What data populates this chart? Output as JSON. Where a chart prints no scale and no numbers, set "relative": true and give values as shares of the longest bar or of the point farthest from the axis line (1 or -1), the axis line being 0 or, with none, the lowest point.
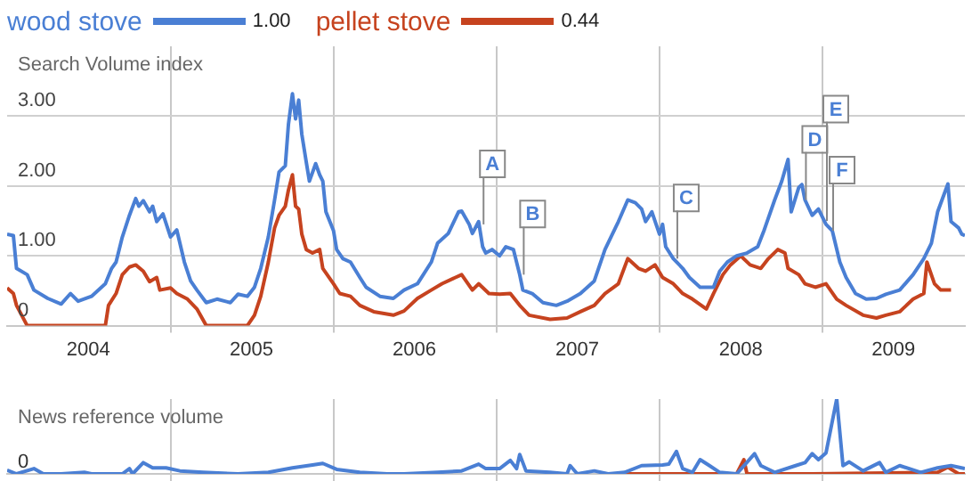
{
  "chart_data": [
    {
      "type": "line",
      "ylabel": "Search Volume index",
      "legend": "top left",
      "grid": true,
      "xlim": [
        "2004-01-01",
        "2009-11-15"
      ],
      "xticks": [
        {
          "value": "2004-07-01",
          "label": "2004"
        },
        {
          "value": "2005-01-01",
          "label": null
        },
        {
          "value": "2005-07-01",
          "label": "2005"
        },
        {
          "value": "2006-01-01",
          "label": null
        },
        {
          "value": "2006-07-01",
          "label": "2006"
        },
        {
          "value": "2007-01-01",
          "label": null
        },
        {
          "value": "2007-07-01",
          "label": "2007"
        },
        {
          "value": "2008-01-01",
          "label": null
        },
        {
          "value": "2008-07-01",
          "label": "2008"
        },
        {
          "value": "2009-01-01",
          "label": null
        },
        {
          "value": "2009-06-08",
          "label": "2009"
        }
      ],
      "ylim": [
        0,
        4
      ],
      "yticks": [
        0,
        {
          "value": 1,
          "label": "1.00"
        },
        {
          "value": 2,
          "label": "2.00"
        },
        {
          "value": 3,
          "label": "3.00"
        }
      ],
      "annotations": [
        "1.00",
        "0.44",
        {
          "text": "A",
          "x": "2006-12-01",
          "y": 1.45
        },
        {
          "text": "B",
          "x": "2007-03-01",
          "y": 0.73
        },
        {
          "text": "C",
          "x": "2008-02-08",
          "y": 0.96
        },
        {
          "text": "D",
          "x": "2008-11-22",
          "y": 1.8
        },
        {
          "text": "E",
          "x": "2009-01-08",
          "y": 1.5
        },
        {
          "text": "F",
          "x": "2009-01-22",
          "y": 1.36
        }
      ],
      "series": [
        {
          "name": "wood stove",
          "color": "#4a7fd4",
          "x": [
            "2004-01-01",
            "2004-01-15",
            "2004-01-22",
            "2004-02-15",
            "2004-03-01",
            "2004-04-01",
            "2004-05-01",
            "2004-05-22",
            "2004-06-08",
            "2004-07-08",
            "2004-08-08",
            "2004-08-22",
            "2004-09-01",
            "2004-09-15",
            "2004-10-01",
            "2004-10-15",
            "2004-10-22",
            "2004-11-01",
            "2004-11-15",
            "2004-11-22",
            "2004-12-01",
            "2004-12-15",
            "2005-01-01",
            "2005-01-15",
            "2005-02-01",
            "2005-02-15",
            "2005-03-01",
            "2005-03-22",
            "2005-04-15",
            "2005-05-15",
            "2005-06-01",
            "2005-06-22",
            "2005-07-08",
            "2005-07-22",
            "2005-08-08",
            "2005-08-22",
            "2005-09-01",
            "2005-09-15",
            "2005-09-22",
            "2005-10-01",
            "2005-10-08",
            "2005-10-15",
            "2005-10-22",
            "2005-11-01",
            "2005-11-08",
            "2005-11-22",
            "2005-12-01",
            "2005-12-08",
            "2005-12-15",
            "2006-01-01",
            "2006-01-08",
            "2006-01-22",
            "2006-02-08",
            "2006-03-01",
            "2006-03-15",
            "2006-04-15",
            "2006-05-15",
            "2006-06-08",
            "2006-07-08",
            "2006-08-08",
            "2006-08-22",
            "2006-09-15",
            "2006-10-08",
            "2006-10-15",
            "2006-11-01",
            "2006-11-08",
            "2006-11-22",
            "2006-12-01",
            "2006-12-08",
            "2006-12-22",
            "2007-01-08",
            "2007-01-22",
            "2007-02-08",
            "2007-02-22",
            "2007-03-01",
            "2007-03-22",
            "2007-04-15",
            "2007-05-15",
            "2007-06-08",
            "2007-07-08",
            "2007-08-08",
            "2007-09-01",
            "2007-10-01",
            "2007-10-22",
            "2007-11-08",
            "2007-11-22",
            "2007-12-01",
            "2007-12-15",
            "2008-01-01",
            "2008-01-08",
            "2008-01-15",
            "2008-02-01",
            "2008-02-22",
            "2008-03-08",
            "2008-04-01",
            "2008-05-01",
            "2008-05-15",
            "2008-06-01",
            "2008-06-22",
            "2008-07-15",
            "2008-08-08",
            "2008-08-22",
            "2008-09-15",
            "2008-10-01",
            "2008-10-15",
            "2008-10-22",
            "2008-11-08",
            "2008-11-15",
            "2008-11-22",
            "2008-12-08",
            "2008-12-22",
            "2009-01-08",
            "2009-01-22",
            "2009-02-08",
            "2009-02-22",
            "2009-03-15",
            "2009-04-08",
            "2009-05-01",
            "2009-05-22",
            "2009-06-22",
            "2009-07-22",
            "2009-08-15",
            "2009-09-01",
            "2009-09-15",
            "2009-10-08",
            "2009-10-15",
            "2009-11-01",
            "2009-11-08",
            "2009-11-15"
          ],
          "values": [
            1.31,
            1.29,
            0.82,
            0.73,
            0.51,
            0.39,
            0.31,
            0.46,
            0.35,
            0.42,
            0.6,
            0.82,
            0.91,
            1.27,
            1.58,
            1.82,
            1.71,
            1.79,
            1.63,
            1.71,
            1.49,
            1.6,
            1.27,
            1.37,
            0.91,
            0.64,
            0.51,
            0.33,
            0.38,
            0.33,
            0.45,
            0.42,
            0.55,
            0.82,
            1.27,
            1.8,
            2.2,
            2.29,
            2.88,
            3.32,
            2.96,
            3.23,
            2.74,
            2.34,
            2.07,
            2.32,
            2.16,
            2.07,
            1.63,
            1.36,
            1.09,
            0.96,
            0.91,
            0.69,
            0.55,
            0.42,
            0.39,
            0.51,
            0.6,
            0.91,
            1.18,
            1.32,
            1.63,
            1.64,
            1.45,
            1.32,
            1.49,
            1.13,
            1.04,
            1.09,
            1.0,
            1.13,
            1.09,
            0.73,
            0.51,
            0.46,
            0.33,
            0.29,
            0.35,
            0.46,
            0.64,
            1.09,
            1.49,
            1.8,
            1.76,
            1.67,
            1.49,
            1.63,
            1.31,
            1.45,
            1.13,
            0.96,
            0.82,
            0.69,
            0.55,
            0.55,
            0.78,
            0.91,
            1.0,
            1.04,
            1.13,
            1.36,
            1.8,
            2.07,
            2.38,
            1.63,
            1.98,
            2.02,
            1.8,
            1.58,
            1.67,
            1.45,
            1.36,
            0.91,
            0.69,
            0.46,
            0.38,
            0.39,
            0.45,
            0.51,
            0.73,
            0.96,
            1.18,
            1.63,
            2.03,
            1.49,
            1.4,
            1.31,
            1.29
          ]
        },
        {
          "name": "pellet stove",
          "color": "#c6431f",
          "x": [
            "2004-01-01",
            "2004-01-15",
            "2004-01-22",
            "2004-02-15",
            "2004-05-01",
            "2004-08-08",
            "2004-08-15",
            "2004-09-01",
            "2004-09-15",
            "2004-10-01",
            "2004-10-15",
            "2004-11-01",
            "2004-11-15",
            "2004-12-01",
            "2004-12-08",
            "2005-01-01",
            "2005-01-15",
            "2005-02-08",
            "2005-03-01",
            "2005-03-22",
            "2005-06-22",
            "2005-07-08",
            "2005-07-22",
            "2005-08-08",
            "2005-08-22",
            "2005-09-01",
            "2005-09-15",
            "2005-09-22",
            "2005-10-01",
            "2005-10-08",
            "2005-10-15",
            "2005-10-22",
            "2005-11-01",
            "2005-11-15",
            "2005-12-01",
            "2005-12-08",
            "2006-01-01",
            "2006-01-15",
            "2006-02-08",
            "2006-03-01",
            "2006-04-01",
            "2006-05-15",
            "2006-06-08",
            "2006-07-08",
            "2006-08-08",
            "2006-09-01",
            "2006-10-01",
            "2006-10-15",
            "2006-11-08",
            "2006-11-22",
            "2006-12-15",
            "2007-01-08",
            "2007-02-01",
            "2007-02-22",
            "2007-03-15",
            "2007-05-01",
            "2007-06-08",
            "2007-07-08",
            "2007-08-08",
            "2007-09-01",
            "2007-10-01",
            "2007-10-22",
            "2007-11-15",
            "2007-12-01",
            "2007-12-22",
            "2008-01-08",
            "2008-02-01",
            "2008-02-22",
            "2008-03-15",
            "2008-04-15",
            "2008-05-01",
            "2008-05-22",
            "2008-06-08",
            "2008-07-01",
            "2008-07-22",
            "2008-08-15",
            "2008-09-01",
            "2008-09-22",
            "2008-10-08",
            "2008-10-15",
            "2008-11-08",
            "2008-11-22",
            "2008-12-15",
            "2009-01-08",
            "2009-02-01",
            "2009-02-22",
            "2009-04-01",
            "2009-05-01",
            "2009-05-22",
            "2009-06-22",
            "2009-07-22",
            "2009-08-15",
            "2009-08-22",
            "2009-09-08",
            "2009-09-22",
            "2009-10-15"
          ],
          "values": [
            0.54,
            0.46,
            0.29,
            0,
            0,
            0,
            0.29,
            0.46,
            0.73,
            0.84,
            0.87,
            0.78,
            0.63,
            0.69,
            0.51,
            0.54,
            0.46,
            0.38,
            0.24,
            0,
            0,
            0.15,
            0.42,
            0.91,
            1.4,
            1.58,
            1.71,
            1.94,
            2.16,
            1.71,
            1.67,
            1.31,
            1.09,
            1.04,
            1.09,
            0.82,
            0.6,
            0.46,
            0.42,
            0.29,
            0.2,
            0.15,
            0.21,
            0.39,
            0.51,
            0.6,
            0.69,
            0.73,
            0.51,
            0.6,
            0.46,
            0.45,
            0.46,
            0.29,
            0.15,
            0.09,
            0.11,
            0.2,
            0.29,
            0.46,
            0.6,
            0.96,
            0.82,
            0.78,
            0.87,
            0.69,
            0.6,
            0.46,
            0.38,
            0.24,
            0.46,
            0.73,
            0.87,
            1.0,
            0.87,
            0.82,
            0.96,
            1.09,
            1.04,
            0.82,
            0.73,
            0.6,
            0.55,
            0.6,
            0.38,
            0.29,
            0.15,
            0.11,
            0.15,
            0.2,
            0.38,
            0.46,
            0.91,
            0.6,
            0.51,
            0.51
          ]
        }
      ]
    },
    {
      "type": "line",
      "relative": true,
      "ylabel": "News reference volume",
      "grid": true,
      "tick_labels": false,
      "xlim": [
        "2004-01-01",
        "2009-11-15"
      ],
      "xticks": [
        {
          "value": "2005-01-01",
          "label": null
        },
        {
          "value": "2006-01-01",
          "label": null
        },
        {
          "value": "2007-01-01",
          "label": null
        },
        {
          "value": "2008-01-01",
          "label": null
        },
        {
          "value": "2009-01-01",
          "label": null
        }
      ],
      "annotations": [
        "0"
      ],
      "series": [
        {
          "color": "#4a7fd4",
          "x": [
            "2004-01-01",
            "2004-01-22",
            "2004-03-01",
            "2004-03-22",
            "2004-05-01",
            "2004-06-22",
            "2004-07-08",
            "2004-09-15",
            "2004-10-01",
            "2004-10-08",
            "2004-11-01",
            "2004-11-22",
            "2004-12-22",
            "2005-01-22",
            "2005-03-15",
            "2005-06-01",
            "2005-08-08",
            "2005-10-01",
            "2005-11-15",
            "2005-12-08",
            "2006-01-08",
            "2006-03-01",
            "2006-05-01",
            "2006-06-08",
            "2006-08-22",
            "2006-10-15",
            "2006-11-22",
            "2006-12-08",
            "2007-01-08",
            "2007-02-01",
            "2007-02-15",
            "2007-02-22",
            "2007-03-08",
            "2007-05-01",
            "2007-06-08",
            "2007-06-15",
            "2007-07-01",
            "2007-08-08",
            "2007-09-08",
            "2007-10-15",
            "2007-11-22",
            "2008-01-08",
            "2008-01-22",
            "2008-02-08",
            "2008-02-22",
            "2008-03-15",
            "2008-04-01",
            "2008-04-22",
            "2008-05-15",
            "2008-06-22",
            "2008-08-01",
            "2008-08-15",
            "2008-09-15",
            "2008-11-01",
            "2008-11-22",
            "2008-12-08",
            "2008-12-22",
            "2009-01-08",
            "2009-02-01",
            "2009-02-15",
            "2009-03-01",
            "2009-04-01",
            "2009-05-08",
            "2009-05-22",
            "2009-06-22",
            "2009-08-08",
            "2009-09-15",
            "2009-10-15",
            "2009-11-15"
          ],
          "values": [
            0.05,
            0,
            0.07,
            0,
            0,
            0.02,
            0,
            0,
            0.07,
            0,
            0.15,
            0.08,
            0.08,
            0.04,
            0.02,
            0,
            0.02,
            0.08,
            0.12,
            0.14,
            0.06,
            0.02,
            0,
            0,
            0.02,
            0.04,
            0.13,
            0.07,
            0.07,
            0.18,
            0.07,
            0.26,
            0.04,
            0.02,
            0,
            0.11,
            0,
            0.04,
            0,
            0.02,
            0.11,
            0.12,
            0.13,
            0.3,
            0.07,
            0.02,
            0.19,
            0.11,
            0.02,
            0,
            0.27,
            0.11,
            0.02,
            0.11,
            0.15,
            0.27,
            0.19,
            0.28,
            1,
            0.11,
            0.16,
            0.04,
            0.15,
            0.02,
            0.11,
            0.02,
            0.08,
            0.11,
            0.07
          ]
        },
        {
          "color": "#c6431f",
          "x": [
            "2007-10-15",
            "2008-03-01",
            "2008-06-22",
            "2008-07-08",
            "2008-07-15",
            "2008-12-08",
            "2009-09-15",
            "2009-10-08",
            "2009-11-01",
            "2009-11-15"
          ],
          "values": [
            0,
            0,
            0,
            0.19,
            0,
            0,
            0.02,
            0.09,
            0,
            0
          ]
        }
      ]
    }
  ]
}
